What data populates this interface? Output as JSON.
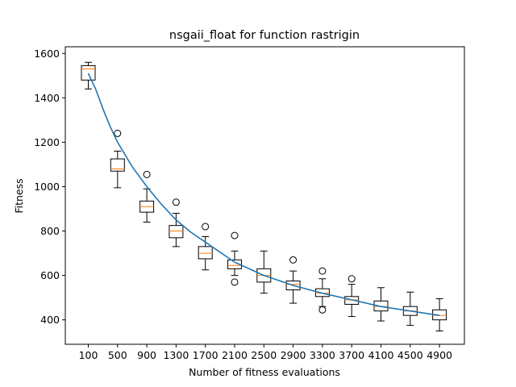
{
  "chart_data": {
    "type": "box",
    "title": "nsgaii_float for function rastrigin",
    "xlabel": "Number of fitness evaluations",
    "ylabel": "Fitness",
    "ylim": [
      290,
      1630
    ],
    "yticks": [
      400,
      600,
      800,
      1000,
      1200,
      1400,
      1600
    ],
    "categories": [
      "100",
      "500",
      "900",
      "1300",
      "1700",
      "2100",
      "2500",
      "2900",
      "3300",
      "3700",
      "4100",
      "4500",
      "4900"
    ],
    "boxes": [
      {
        "x": "100",
        "whislo": 1440,
        "q1": 1480,
        "med": 1530,
        "q3": 1545,
        "whishi": 1560,
        "fliers": []
      },
      {
        "x": "500",
        "whislo": 995,
        "q1": 1070,
        "med": 1080,
        "q3": 1125,
        "whishi": 1160,
        "fliers": [
          1240
        ]
      },
      {
        "x": "900",
        "whislo": 840,
        "q1": 885,
        "med": 910,
        "q3": 935,
        "whishi": 990,
        "fliers": [
          1055
        ]
      },
      {
        "x": "1300",
        "whislo": 730,
        "q1": 770,
        "med": 800,
        "q3": 825,
        "whishi": 880,
        "fliers": [
          930
        ]
      },
      {
        "x": "1700",
        "whislo": 625,
        "q1": 675,
        "med": 700,
        "q3": 730,
        "whishi": 775,
        "fliers": [
          820
        ]
      },
      {
        "x": "2100",
        "whislo": 600,
        "q1": 630,
        "med": 645,
        "q3": 670,
        "whishi": 710,
        "fliers": [
          780,
          570
        ]
      },
      {
        "x": "2500",
        "whislo": 520,
        "q1": 570,
        "med": 600,
        "q3": 630,
        "whishi": 710,
        "fliers": []
      },
      {
        "x": "2900",
        "whislo": 475,
        "q1": 535,
        "med": 560,
        "q3": 575,
        "whishi": 620,
        "fliers": [
          670
        ]
      },
      {
        "x": "3300",
        "whislo": 460,
        "q1": 505,
        "med": 520,
        "q3": 540,
        "whishi": 585,
        "fliers": [
          620,
          445
        ]
      },
      {
        "x": "3700",
        "whislo": 415,
        "q1": 470,
        "med": 490,
        "q3": 505,
        "whishi": 560,
        "fliers": [
          585
        ]
      },
      {
        "x": "4100",
        "whislo": 395,
        "q1": 440,
        "med": 460,
        "q3": 485,
        "whishi": 545,
        "fliers": []
      },
      {
        "x": "4500",
        "whislo": 375,
        "q1": 420,
        "med": 440,
        "q3": 460,
        "whishi": 525,
        "fliers": []
      },
      {
        "x": "4900",
        "whislo": 350,
        "q1": 400,
        "med": 420,
        "q3": 445,
        "whishi": 495,
        "fliers": []
      }
    ],
    "trend_line": {
      "x_index": [
        0,
        0.25,
        0.5,
        0.75,
        1,
        1.5,
        2,
        2.5,
        3,
        3.5,
        4,
        5,
        6,
        7,
        8,
        9,
        10,
        11,
        12
      ],
      "y": [
        1510,
        1440,
        1350,
        1270,
        1200,
        1090,
        1000,
        920,
        850,
        795,
        750,
        660,
        600,
        555,
        520,
        490,
        460,
        440,
        420
      ]
    },
    "colors": {
      "box_edge": "#000000",
      "median": "#ff7f0e",
      "trend_line": "#1f77b4",
      "flier_edge": "#000000"
    }
  }
}
